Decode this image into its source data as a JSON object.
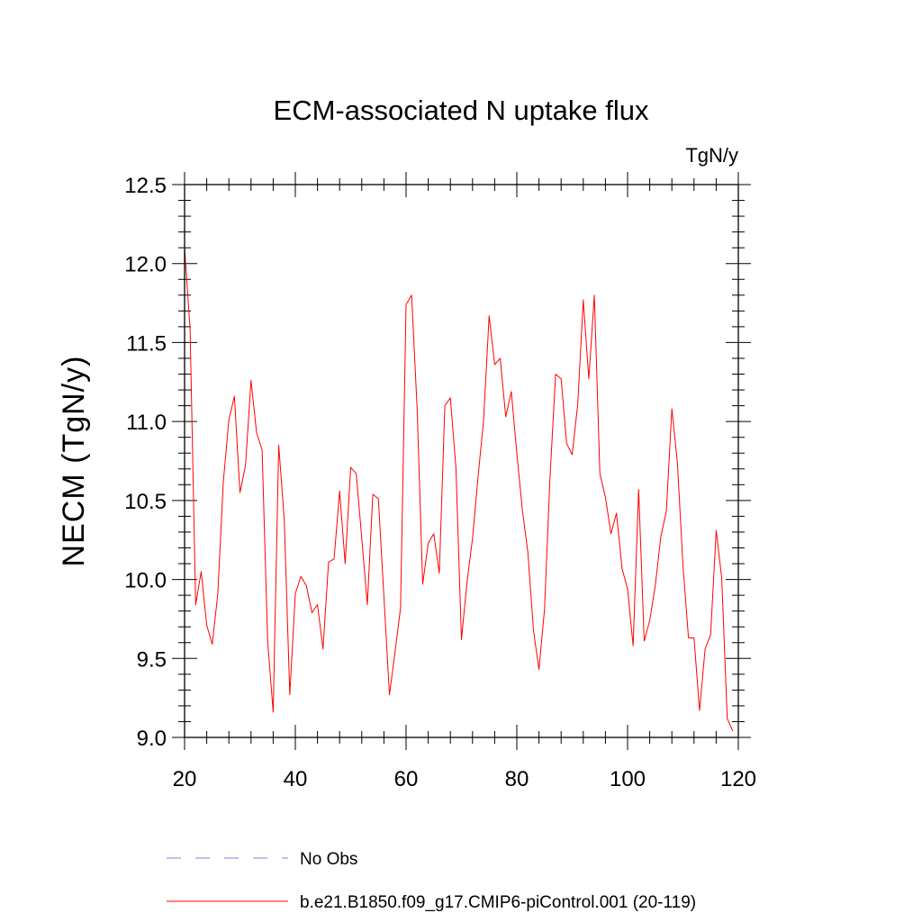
{
  "chart_data": {
    "type": "line",
    "title": "ECM-associated N uptake flux",
    "units_label": "TgN/y",
    "ylabel": "NECM  (TgN/y)",
    "xlabel": "",
    "xlim": [
      20,
      120
    ],
    "ylim": [
      9.0,
      12.5
    ],
    "x_ticks": [
      20,
      40,
      60,
      80,
      100,
      120
    ],
    "x_tick_labels": [
      "20",
      "40",
      "60",
      "80",
      "100",
      "120"
    ],
    "y_ticks": [
      9.0,
      9.5,
      10.0,
      10.5,
      11.0,
      11.5,
      12.0,
      12.5
    ],
    "y_tick_labels": [
      "9.0",
      "9.5",
      "10.0",
      "10.5",
      "11.0",
      "11.5",
      "12.0",
      "12.5"
    ],
    "grid": false,
    "legend_position": "bottom",
    "legend": [
      {
        "label": "No Obs",
        "style": "dashed",
        "color": "#8080e0"
      },
      {
        "label": "b.e21.B1850.f09_g17.CMIP6-piControl.001 (20-119)",
        "style": "solid",
        "color": "#ff0000"
      }
    ],
    "series": [
      {
        "color": "#ff0000",
        "x": [
          20,
          21,
          22,
          23,
          24,
          25,
          26,
          27,
          28,
          29,
          30,
          31,
          32,
          33,
          34,
          35,
          36,
          37,
          38,
          39,
          40,
          41,
          42,
          43,
          44,
          45,
          46,
          47,
          48,
          49,
          50,
          51,
          52,
          53,
          54,
          55,
          56,
          57,
          58,
          59,
          60,
          61,
          62,
          63,
          64,
          65,
          66,
          67,
          68,
          69,
          70,
          71,
          72,
          73,
          74,
          75,
          76,
          77,
          78,
          79,
          80,
          81,
          82,
          83,
          84,
          85,
          86,
          87,
          88,
          89,
          90,
          91,
          92,
          93,
          94,
          95,
          96,
          97,
          98,
          99,
          100,
          101,
          102,
          103,
          104,
          105,
          106,
          107,
          108,
          109,
          110,
          111,
          112,
          113,
          114,
          115,
          116,
          117,
          118,
          119
        ],
        "values": [
          12.1,
          11.58,
          9.84,
          10.05,
          9.71,
          9.59,
          9.91,
          10.62,
          11.01,
          11.16,
          10.55,
          10.72,
          11.26,
          10.93,
          10.82,
          9.61,
          9.16,
          10.85,
          10.38,
          9.27,
          9.91,
          10.02,
          9.96,
          9.79,
          9.84,
          9.56,
          10.11,
          10.13,
          10.56,
          10.1,
          10.71,
          10.67,
          10.26,
          9.84,
          10.54,
          10.51,
          9.89,
          9.27,
          9.54,
          9.82,
          11.74,
          11.8,
          11.08,
          9.97,
          10.23,
          10.29,
          10.04,
          11.1,
          11.15,
          10.71,
          9.62,
          9.98,
          10.26,
          10.65,
          11.01,
          11.67,
          11.36,
          11.4,
          11.03,
          11.19,
          10.8,
          10.44,
          10.17,
          9.68,
          9.43,
          9.81,
          10.65,
          11.3,
          11.27,
          10.86,
          10.79,
          11.11,
          11.77,
          11.27,
          11.8,
          10.67,
          10.52,
          10.29,
          10.42,
          10.07,
          9.94,
          9.58,
          10.57,
          9.61,
          9.74,
          9.96,
          10.27,
          10.43,
          11.08,
          10.74,
          10.09,
          9.63,
          9.63,
          9.17,
          9.56,
          9.65,
          10.31,
          10.01,
          9.12,
          9.04
        ]
      }
    ]
  }
}
